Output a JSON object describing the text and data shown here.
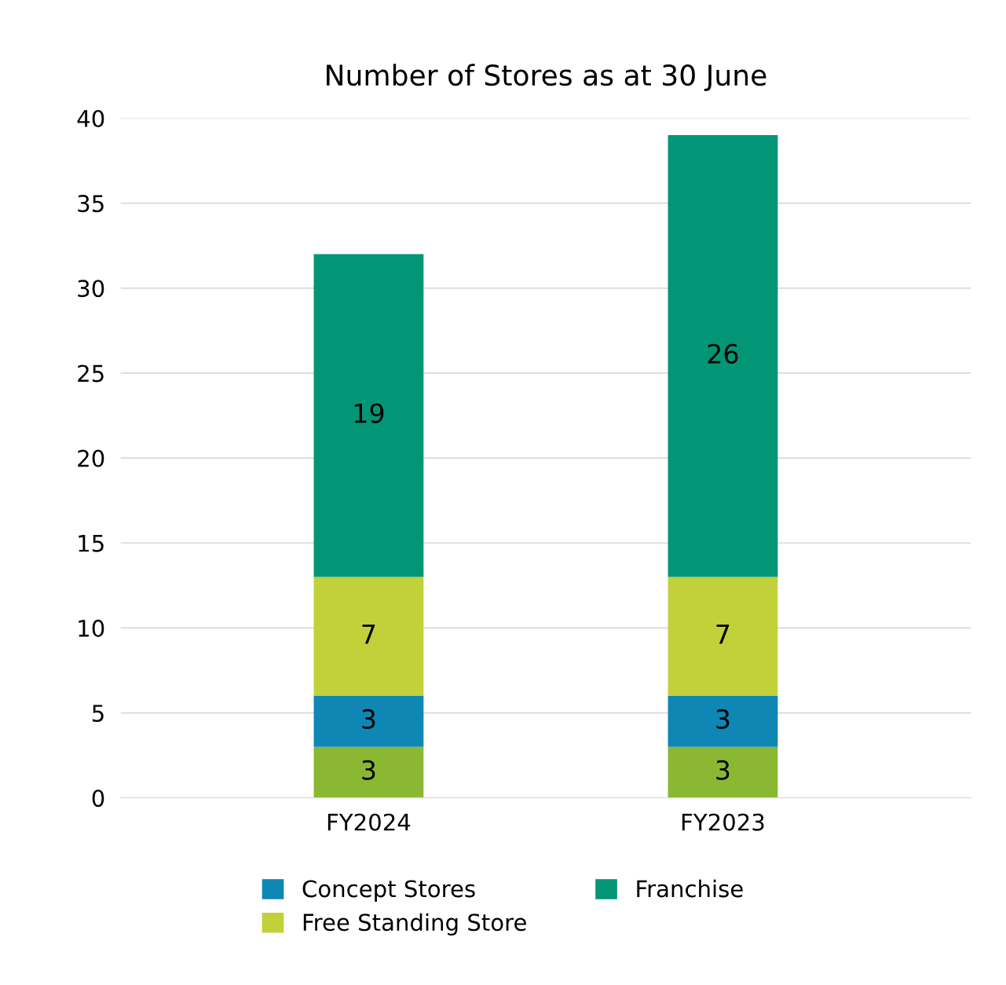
{
  "chart_data": {
    "type": "bar",
    "title": "Number of Stores as at 30 June",
    "categories": [
      "FY2024",
      "FY2023"
    ],
    "stacked": true,
    "data_labels": true,
    "series": [
      {
        "color": "#8ab833",
        "values": [
          3,
          3
        ]
      },
      {
        "name": "Concept Stores",
        "color": "#0e87b4",
        "values": [
          3,
          3
        ]
      },
      {
        "name": "Free Standing Store",
        "color": "#c2d13a",
        "values": [
          7,
          7
        ]
      },
      {
        "name": "Franchise",
        "color": "#029676",
        "values": [
          19,
          26
        ]
      }
    ],
    "ylim": [
      0,
      40
    ],
    "yticks": [
      0,
      5,
      10,
      15,
      20,
      25,
      30,
      35,
      40
    ],
    "grid": "y",
    "legend": "bottom"
  }
}
